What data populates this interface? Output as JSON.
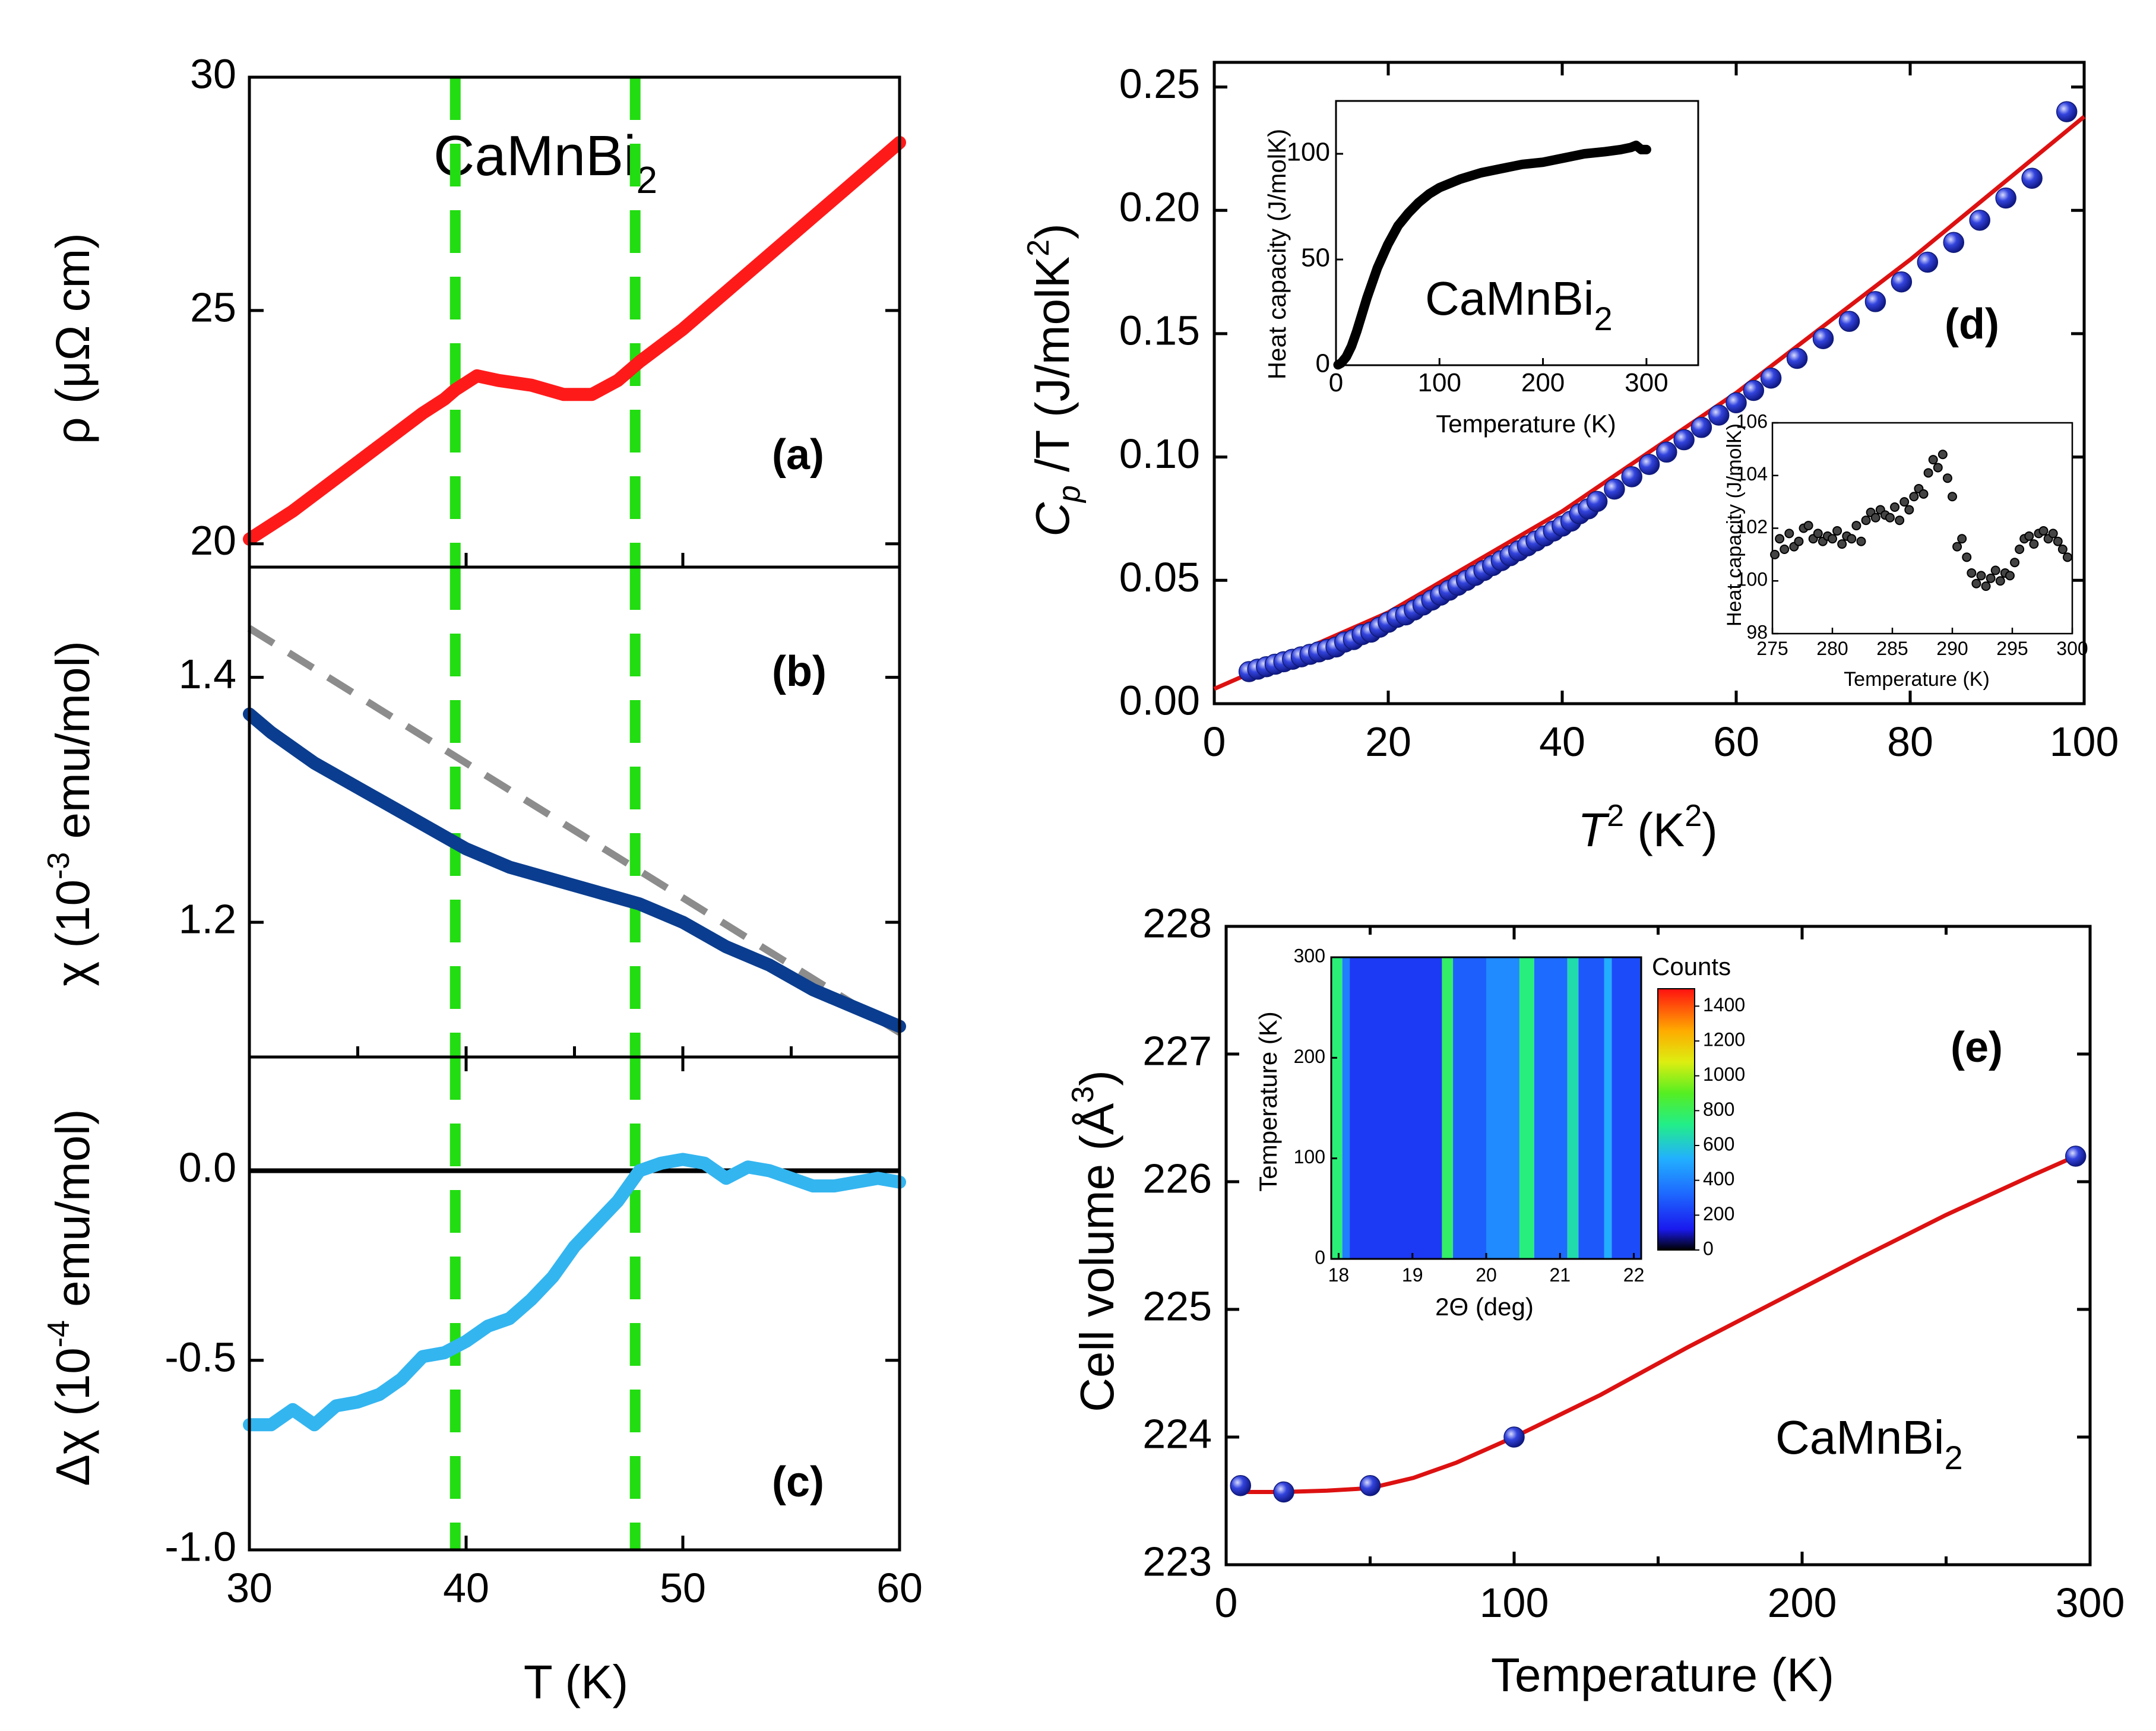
{
  "colors": {
    "rho": "#ff1a1a",
    "chi": "#0a3d8f",
    "chi_fit": "#8c8c8c",
    "dchi": "#33b5f0",
    "transition_line": "#22dd11",
    "marker": "#3344dd",
    "fit": "#dd1111",
    "inset_points": "#000000"
  },
  "chart_data": [
    {
      "id": "a",
      "type": "line",
      "panel_label": "(a)",
      "formula": {
        "base": "CaMnBi",
        "sub": "2"
      },
      "ylabel": "ρ (μΩ cm)",
      "xlabel": "",
      "xlim": [
        30,
        60
      ],
      "ylim": [
        19.5,
        30
      ],
      "yticks": [
        "20",
        "25",
        "30"
      ],
      "ytick_values": [
        20,
        25,
        30
      ],
      "transition_lines_x": [
        39.5,
        47.8
      ],
      "series": [
        {
          "name": "rho",
          "x": [
            30,
            32,
            34,
            36,
            38,
            39,
            39.5,
            40.5,
            41.5,
            43,
            44.5,
            45.8,
            47,
            48,
            50,
            52,
            54,
            56,
            58,
            60
          ],
          "values": [
            20.1,
            20.7,
            21.4,
            22.1,
            22.8,
            23.1,
            23.3,
            23.6,
            23.5,
            23.4,
            23.2,
            23.2,
            23.5,
            23.9,
            24.6,
            25.4,
            26.2,
            27.0,
            27.8,
            28.6
          ]
        }
      ]
    },
    {
      "id": "b",
      "type": "line",
      "panel_label": "(b)",
      "ylabel_parts": [
        "χ (10",
        "-3",
        " emu/mol)"
      ],
      "xlabel": "",
      "xlim": [
        30,
        60
      ],
      "ylim": [
        1.09,
        1.49
      ],
      "yticks": [
        "1.2",
        "1.4"
      ],
      "ytick_values": [
        1.2,
        1.4
      ],
      "transition_lines_x": [
        39.5,
        47.8
      ],
      "series": [
        {
          "name": "chi",
          "x": [
            30,
            31,
            33,
            35,
            37,
            39,
            40,
            42,
            44,
            46,
            48,
            50,
            52,
            54,
            56,
            58,
            60
          ],
          "values": [
            1.37,
            1.355,
            1.33,
            1.31,
            1.29,
            1.27,
            1.26,
            1.245,
            1.235,
            1.225,
            1.215,
            1.2,
            1.18,
            1.165,
            1.145,
            1.13,
            1.115
          ]
        },
        {
          "name": "chi_fit",
          "dashed": true,
          "x": [
            30,
            60
          ],
          "values": [
            1.44,
            1.11
          ]
        }
      ]
    },
    {
      "id": "c",
      "type": "line",
      "panel_label": "(c)",
      "ylabel_parts": [
        "Δχ (10",
        "-4",
        " emu/mol)"
      ],
      "xlabel": "T (K)",
      "xlim": [
        30,
        60
      ],
      "ylim": [
        -1.0,
        0.3
      ],
      "xticks": [
        "30",
        "40",
        "50",
        "60"
      ],
      "xtick_values": [
        30,
        40,
        50,
        60
      ],
      "yticks": [
        "-1.0",
        "-0.5",
        "0.0"
      ],
      "ytick_values": [
        -1.0,
        -0.5,
        0.0
      ],
      "transition_lines_x": [
        39.5,
        47.8
      ],
      "series": [
        {
          "name": "dchi",
          "x": [
            30,
            31,
            32,
            33,
            34,
            35,
            36,
            37,
            38,
            39,
            40,
            41,
            42,
            43,
            44,
            45,
            46,
            47,
            48,
            49,
            50,
            51,
            52,
            53,
            54,
            55,
            56,
            57,
            58,
            59,
            60
          ],
          "values": [
            -0.67,
            -0.67,
            -0.63,
            -0.67,
            -0.62,
            -0.61,
            -0.59,
            -0.55,
            -0.49,
            -0.48,
            -0.45,
            -0.41,
            -0.39,
            -0.34,
            -0.28,
            -0.2,
            -0.14,
            -0.08,
            0.0,
            0.02,
            0.03,
            0.02,
            -0.02,
            0.01,
            0.0,
            -0.02,
            -0.04,
            -0.04,
            -0.03,
            -0.02,
            -0.03
          ]
        }
      ]
    },
    {
      "id": "d",
      "type": "scatter",
      "panel_label": "(d)",
      "ylabel_parts": [
        "C",
        "p",
        " /T (J/molK",
        "2",
        ")"
      ],
      "xlabel_parts": [
        "T",
        "2",
        " (K",
        "2",
        ")"
      ],
      "xlim": [
        0,
        100
      ],
      "ylim": [
        0,
        0.26
      ],
      "xticks": [
        "0",
        "20",
        "40",
        "60",
        "80",
        "100"
      ],
      "xtick_values": [
        0,
        20,
        40,
        60,
        80,
        100
      ],
      "yticks": [
        "0.00",
        "0.05",
        "0.10",
        "0.15",
        "0.20",
        "0.25"
      ],
      "ytick_values": [
        0,
        0.05,
        0.1,
        0.15,
        0.2,
        0.25
      ],
      "fit": {
        "x": [
          0,
          20,
          40,
          60,
          80,
          100
        ],
        "values": [
          0.006,
          0.037,
          0.078,
          0.126,
          0.18,
          0.238
        ]
      },
      "points": {
        "x": [
          4,
          5,
          6,
          7,
          8,
          9,
          10,
          11,
          12,
          13,
          14,
          15,
          16,
          17,
          18,
          19,
          20,
          21,
          22,
          23,
          24,
          25,
          26,
          27,
          28,
          29,
          30,
          31,
          32,
          33,
          34,
          35,
          36,
          37,
          38,
          39,
          40,
          41,
          42,
          43,
          44,
          46,
          48,
          50,
          52,
          54,
          56,
          58,
          60,
          62,
          64,
          67,
          70,
          73,
          76,
          79,
          82,
          85,
          88,
          91,
          94,
          98
        ],
        "values": [
          0.013,
          0.014,
          0.015,
          0.016,
          0.017,
          0.018,
          0.019,
          0.02,
          0.021,
          0.022,
          0.023,
          0.025,
          0.026,
          0.028,
          0.029,
          0.031,
          0.033,
          0.035,
          0.036,
          0.038,
          0.04,
          0.042,
          0.044,
          0.046,
          0.048,
          0.05,
          0.052,
          0.054,
          0.056,
          0.058,
          0.06,
          0.062,
          0.064,
          0.066,
          0.068,
          0.07,
          0.072,
          0.074,
          0.077,
          0.079,
          0.082,
          0.087,
          0.092,
          0.097,
          0.102,
          0.107,
          0.112,
          0.117,
          0.122,
          0.127,
          0.132,
          0.14,
          0.148,
          0.155,
          0.163,
          0.171,
          0.179,
          0.187,
          0.196,
          0.205,
          0.213,
          0.24
        ]
      },
      "inset1": {
        "formula": {
          "base": "CaMnBi",
          "sub": "2"
        },
        "xlabel": "Temperature (K)",
        "ylabel": "Heat capacity (J/molK)",
        "xlim": [
          0,
          350
        ],
        "ylim": [
          0,
          125
        ],
        "xticks": [
          "0",
          "100",
          "200",
          "300"
        ],
        "xtick_values": [
          0,
          100,
          200,
          300
        ],
        "yticks": [
          "0",
          "50",
          "100"
        ],
        "ytick_values": [
          0,
          50,
          100
        ],
        "x": [
          2,
          5,
          10,
          15,
          20,
          25,
          30,
          40,
          50,
          60,
          70,
          80,
          90,
          100,
          120,
          140,
          160,
          180,
          200,
          220,
          240,
          260,
          275,
          285,
          290,
          295,
          300
        ],
        "values": [
          0.2,
          1,
          4,
          9,
          16,
          24,
          32,
          46,
          57,
          66,
          72,
          77,
          81,
          84,
          88,
          91,
          93,
          95,
          96,
          98,
          100,
          101,
          102,
          103,
          104,
          102,
          102
        ]
      },
      "inset2": {
        "xlabel": "Temperature (K)",
        "ylabel": "Heat capacity (J/molK)",
        "xlim": [
          275,
          300
        ],
        "ylim": [
          98,
          106
        ],
        "xticks": [
          "275",
          "280",
          "285",
          "290",
          "295",
          "300"
        ],
        "xtick_values": [
          275,
          280,
          285,
          290,
          295,
          300
        ],
        "yticks": [
          "98",
          "100",
          "102",
          "104",
          "106"
        ],
        "ytick_values": [
          98,
          100,
          102,
          104,
          106
        ],
        "x": [
          275.2,
          275.6,
          276,
          276.4,
          276.8,
          277.2,
          277.6,
          278,
          278.4,
          278.8,
          279.2,
          279.6,
          280,
          280.4,
          280.8,
          281.2,
          281.6,
          282,
          282.4,
          282.8,
          283.2,
          283.6,
          284,
          284.4,
          284.8,
          285.2,
          285.6,
          286,
          286.4,
          286.8,
          287.2,
          287.6,
          288,
          288.4,
          288.8,
          289.2,
          289.6,
          290,
          290.4,
          290.8,
          291.2,
          291.6,
          292,
          292.4,
          292.8,
          293.2,
          293.6,
          294,
          294.4,
          294.8,
          295.2,
          295.6,
          296,
          296.4,
          296.8,
          297.2,
          297.6,
          298,
          298.4,
          298.8,
          299.2,
          299.6
        ],
        "values": [
          101.0,
          101.6,
          101.2,
          101.8,
          101.3,
          101.5,
          102.0,
          102.1,
          101.6,
          101.8,
          101.5,
          101.7,
          101.6,
          101.9,
          101.4,
          101.7,
          101.6,
          102.1,
          101.5,
          102.3,
          102.6,
          102.4,
          102.7,
          102.5,
          102.4,
          102.8,
          102.3,
          103.0,
          102.7,
          103.2,
          103.5,
          103.3,
          104.1,
          104.6,
          104.3,
          104.8,
          103.9,
          103.2,
          101.3,
          101.6,
          100.9,
          100.3,
          99.9,
          100.2,
          99.8,
          100.1,
          100.4,
          100.0,
          100.3,
          100.2,
          100.7,
          101.2,
          101.6,
          101.7,
          101.4,
          101.8,
          101.9,
          101.6,
          101.8,
          101.5,
          101.2,
          100.9
        ]
      }
    },
    {
      "id": "e",
      "type": "line",
      "panel_label": "(e)",
      "formula": {
        "base": "CaMnBi",
        "sub": "2"
      },
      "ylabel_parts": [
        "Cell volume (Å",
        "3",
        ")"
      ],
      "xlabel": "Temperature (K)",
      "xlim": [
        0,
        300
      ],
      "ylim": [
        223,
        228
      ],
      "xticks": [
        "0",
        "100",
        "200",
        "300"
      ],
      "xtick_values": [
        0,
        100,
        200,
        300
      ],
      "yticks": [
        "223",
        "224",
        "225",
        "226",
        "227",
        "228"
      ],
      "ytick_values": [
        223,
        224,
        225,
        226,
        227,
        228
      ],
      "points": {
        "x": [
          5,
          20,
          50,
          100,
          295
        ],
        "values": [
          223.62,
          223.57,
          223.62,
          224.0,
          226.2
        ]
      },
      "fit": {
        "x": [
          5,
          20,
          35,
          50,
          65,
          80,
          100,
          130,
          160,
          190,
          220,
          250,
          280,
          295
        ],
        "values": [
          223.57,
          223.57,
          223.58,
          223.6,
          223.68,
          223.8,
          224.0,
          224.33,
          224.7,
          225.05,
          225.4,
          225.74,
          226.05,
          226.2
        ]
      },
      "inset": {
        "type": "heatmap",
        "xlabel": "2Θ (deg)",
        "ylabel": "Temperature (K)",
        "xlim": [
          17.9,
          22.1
        ],
        "ylim": [
          0,
          300
        ],
        "xticks": [
          "18",
          "19",
          "20",
          "21",
          "22"
        ],
        "xtick_values": [
          18,
          19,
          20,
          21,
          22
        ],
        "yticks": [
          "0",
          "100",
          "200",
          "300"
        ],
        "ytick_values": [
          0,
          100,
          200,
          300
        ],
        "colorbar_title": "Counts",
        "colorbar_ticks": [
          "0",
          "200",
          "400",
          "600",
          "800",
          "1000",
          "1200",
          "1400"
        ],
        "colorbar_values": [
          0,
          200,
          400,
          600,
          800,
          1000,
          1200,
          1400
        ],
        "colorbar_max": 1500,
        "stripes": [
          {
            "x0": 17.9,
            "x1": 18.05,
            "value": 750
          },
          {
            "x0": 18.05,
            "x1": 18.15,
            "value": 380
          },
          {
            "x0": 18.15,
            "x1": 19.4,
            "value": 200
          },
          {
            "x0": 19.4,
            "x1": 19.55,
            "value": 780
          },
          {
            "x0": 19.55,
            "x1": 20.0,
            "value": 300
          },
          {
            "x0": 20.0,
            "x1": 20.45,
            "value": 420
          },
          {
            "x0": 20.45,
            "x1": 20.65,
            "value": 740
          },
          {
            "x0": 20.65,
            "x1": 21.1,
            "value": 330
          },
          {
            "x0": 21.1,
            "x1": 21.25,
            "value": 660
          },
          {
            "x0": 21.25,
            "x1": 21.6,
            "value": 280
          },
          {
            "x0": 21.6,
            "x1": 21.7,
            "value": 520
          },
          {
            "x0": 21.7,
            "x1": 22.1,
            "value": 250
          }
        ]
      }
    }
  ]
}
